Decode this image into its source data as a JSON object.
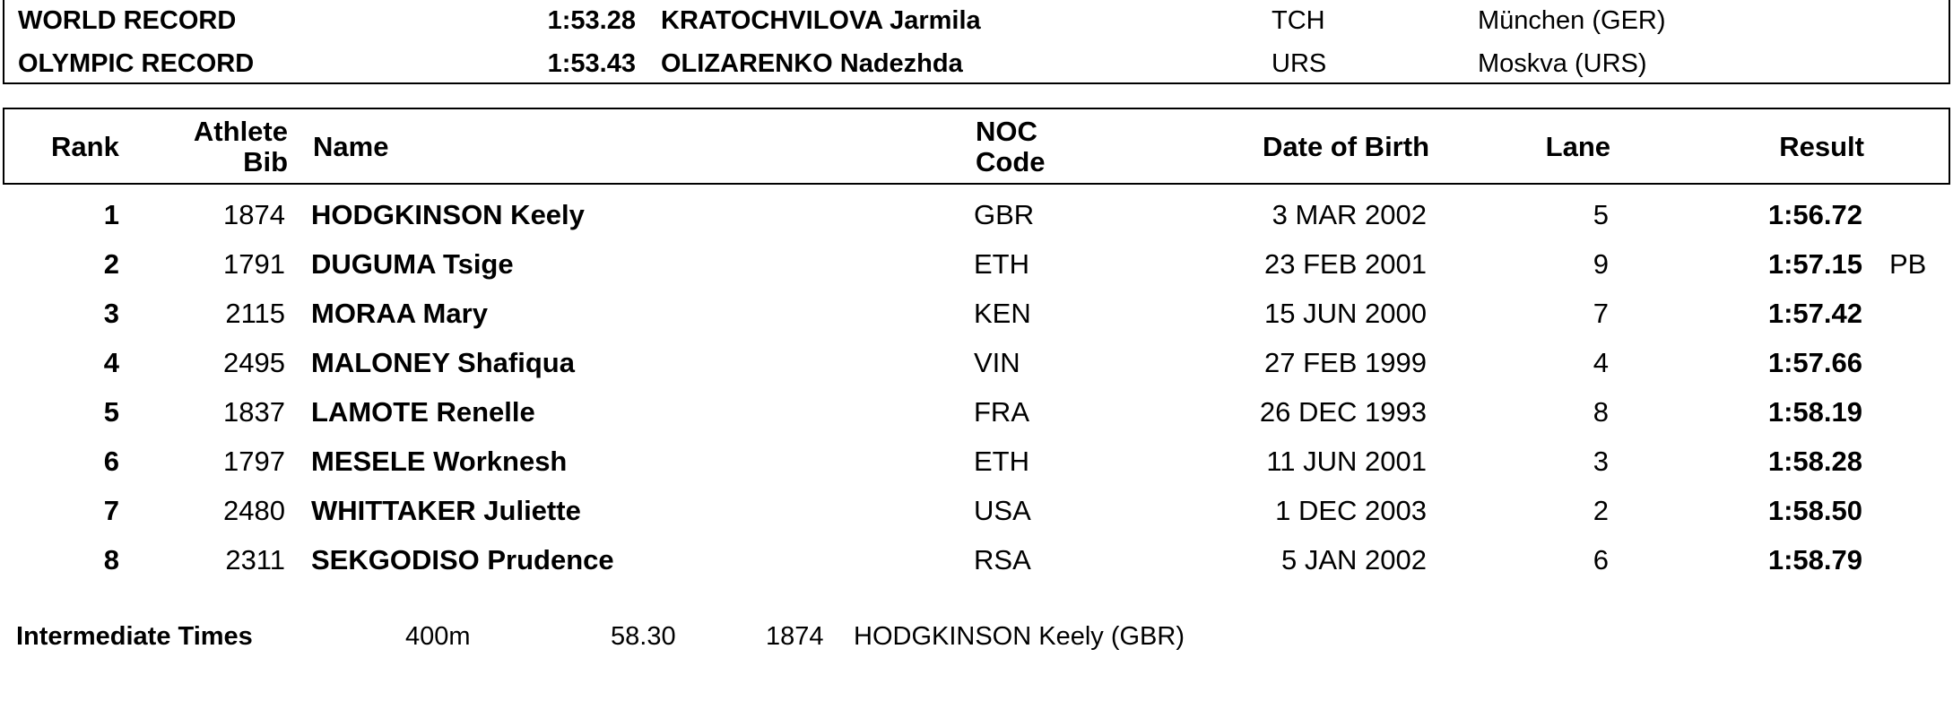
{
  "records": [
    {
      "label": "WORLD RECORD",
      "time": "1:53.28",
      "name": "KRATOCHVILOVA Jarmila",
      "noc": "TCH",
      "venue": "München (GER)"
    },
    {
      "label": "OLYMPIC RECORD",
      "time": "1:53.43",
      "name": "OLIZARENKO Nadezhda",
      "noc": "URS",
      "venue": "Moskva (URS)"
    }
  ],
  "headers": {
    "rank": "Rank",
    "bib_line1": "Athlete",
    "bib_line2": "Bib",
    "name": "Name",
    "noc_line1": "NOC",
    "noc_line2": "Code",
    "dob": "Date of Birth",
    "lane": "Lane",
    "result": "Result"
  },
  "results": [
    {
      "rank": "1",
      "bib": "1874",
      "name": "HODGKINSON Keely",
      "noc": "GBR",
      "dob": "3 MAR 2002",
      "lane": "5",
      "result": "1:56.72",
      "note": ""
    },
    {
      "rank": "2",
      "bib": "1791",
      "name": "DUGUMA Tsige",
      "noc": "ETH",
      "dob": "23 FEB 2001",
      "lane": "9",
      "result": "1:57.15",
      "note": "PB"
    },
    {
      "rank": "3",
      "bib": "2115",
      "name": "MORAA Mary",
      "noc": "KEN",
      "dob": "15 JUN 2000",
      "lane": "7",
      "result": "1:57.42",
      "note": ""
    },
    {
      "rank": "4",
      "bib": "2495",
      "name": "MALONEY Shafiqua",
      "noc": "VIN",
      "dob": "27 FEB 1999",
      "lane": "4",
      "result": "1:57.66",
      "note": ""
    },
    {
      "rank": "5",
      "bib": "1837",
      "name": "LAMOTE Renelle",
      "noc": "FRA",
      "dob": "26 DEC 1993",
      "lane": "8",
      "result": "1:58.19",
      "note": ""
    },
    {
      "rank": "6",
      "bib": "1797",
      "name": "MESELE Worknesh",
      "noc": "ETH",
      "dob": "11 JUN 2001",
      "lane": "3",
      "result": "1:58.28",
      "note": ""
    },
    {
      "rank": "7",
      "bib": "2480",
      "name": "WHITTAKER Juliette",
      "noc": "USA",
      "dob": "1 DEC 2003",
      "lane": "2",
      "result": "1:58.50",
      "note": ""
    },
    {
      "rank": "8",
      "bib": "2311",
      "name": "SEKGODISO Prudence",
      "noc": "RSA",
      "dob": "5 JAN 2002",
      "lane": "6",
      "result": "1:58.79",
      "note": ""
    }
  ],
  "intermediate": {
    "label": "Intermediate Times",
    "distance": "400m",
    "time": "58.30",
    "bib": "1874",
    "athlete": "HODGKINSON Keely (GBR)"
  }
}
